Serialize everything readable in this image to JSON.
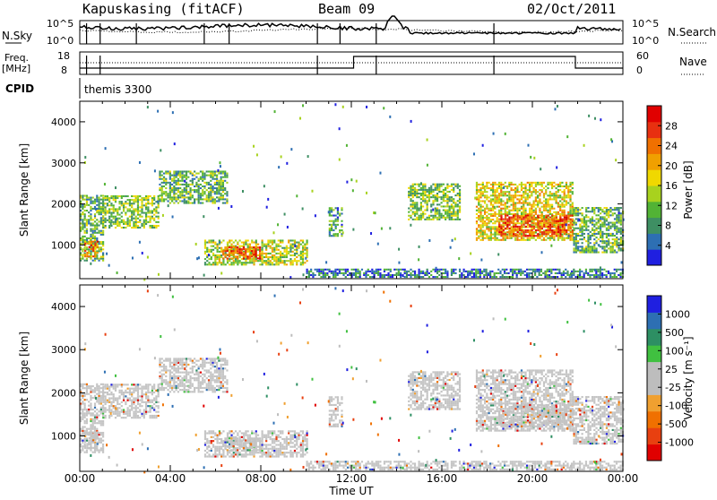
{
  "header": {
    "station": "Kapuskasing (fitACF)",
    "beam": "Beam 09",
    "date": "02/Oct/2011"
  },
  "top_panels": {
    "nsky_label": "N.Sky",
    "nsky_tick_top": "10^5",
    "nsky_tick_bottom": "10^0",
    "nsearch_label": "N.Search",
    "nsearch_tick_top": "10^5",
    "nsearch_tick_bottom": "10^0",
    "freq_label_line1": "Freq.",
    "freq_label_line2": "[MHz]",
    "freq_tick_top": "18",
    "freq_tick_bottom": "8",
    "nave_label": "Nave",
    "nave_tick_top": "60",
    "nave_tick_bottom": "0",
    "cpid_label": "CPID",
    "cpid_value": "themis 3300"
  },
  "colors": {
    "power": [
      "#1f1fe0",
      "#2d6fb3",
      "#3e8f63",
      "#52b335",
      "#a8d21e",
      "#f0d800",
      "#f0a000",
      "#f07000",
      "#e83010",
      "#e00000"
    ],
    "velocity": [
      "#e00000",
      "#e84010",
      "#f07000",
      "#f0a030",
      "#bdbdbd",
      "#bdbdbd",
      "#40c040",
      "#2d8f63",
      "#2d6fb3",
      "#1f1fe0"
    ],
    "ground": "#c4c4c4"
  },
  "power_colorbar": {
    "label": "Power [dB]",
    "ticks": [
      "28",
      "24",
      "20",
      "16",
      "12",
      "8",
      "4"
    ]
  },
  "velocity_colorbar": {
    "label": "Velocity [m s⁻¹]",
    "ticks": [
      "1000",
      "500",
      "100",
      "25",
      "-25",
      "-100",
      "-500",
      "-1000"
    ]
  },
  "chart_data": [
    {
      "type": "heatmap",
      "name": "power",
      "ylabel": "Slant Range [km]",
      "xlabel": "Time UT",
      "xlim": [
        0,
        24
      ],
      "ylim": [
        180,
        4500
      ],
      "yticks": [
        1000,
        2000,
        3000,
        4000
      ],
      "xticks": [
        "00:00",
        "04:00",
        "08:00",
        "12:00",
        "16:00",
        "20:00",
        "00:00"
      ],
      "clim": [
        0,
        30
      ],
      "echo_regions": [
        {
          "t0": 0.0,
          "t1": 1.0,
          "r0": 600,
          "r1": 2200,
          "power": 10
        },
        {
          "t0": 0.2,
          "t1": 0.8,
          "r0": 700,
          "r1": 1100,
          "power": 22
        },
        {
          "t0": 1.0,
          "t1": 3.5,
          "r0": 1400,
          "r1": 2200,
          "power": 12
        },
        {
          "t0": 3.5,
          "t1": 6.5,
          "r0": 2000,
          "r1": 2800,
          "power": 10
        },
        {
          "t0": 5.5,
          "t1": 10.0,
          "r0": 500,
          "r1": 1100,
          "power": 14
        },
        {
          "t0": 6.3,
          "t1": 8.0,
          "r0": 650,
          "r1": 950,
          "power": 24
        },
        {
          "t0": 11.0,
          "t1": 11.6,
          "r0": 1200,
          "r1": 1900,
          "power": 8
        },
        {
          "t0": 14.5,
          "t1": 16.8,
          "r0": 1600,
          "r1": 2500,
          "power": 12
        },
        {
          "t0": 17.5,
          "t1": 21.8,
          "r0": 1100,
          "r1": 2500,
          "power": 16
        },
        {
          "t0": 18.5,
          "t1": 21.8,
          "r0": 1200,
          "r1": 1700,
          "power": 24
        },
        {
          "t0": 21.8,
          "t1": 24.0,
          "r0": 800,
          "r1": 1900,
          "power": 10
        },
        {
          "t0": 10.0,
          "t1": 24.0,
          "r0": 200,
          "r1": 400,
          "power": 6
        }
      ]
    },
    {
      "type": "heatmap",
      "name": "velocity",
      "ylabel": "Slant Range [km]",
      "xlabel": "Time UT",
      "xlim": [
        0,
        24
      ],
      "ylim": [
        180,
        4500
      ],
      "yticks": [
        1000,
        2000,
        3000,
        4000
      ],
      "xticks": [
        "00:00",
        "04:00",
        "08:00",
        "12:00",
        "16:00",
        "20:00",
        "00:00"
      ],
      "clim": [
        -1000,
        1000
      ]
    }
  ]
}
